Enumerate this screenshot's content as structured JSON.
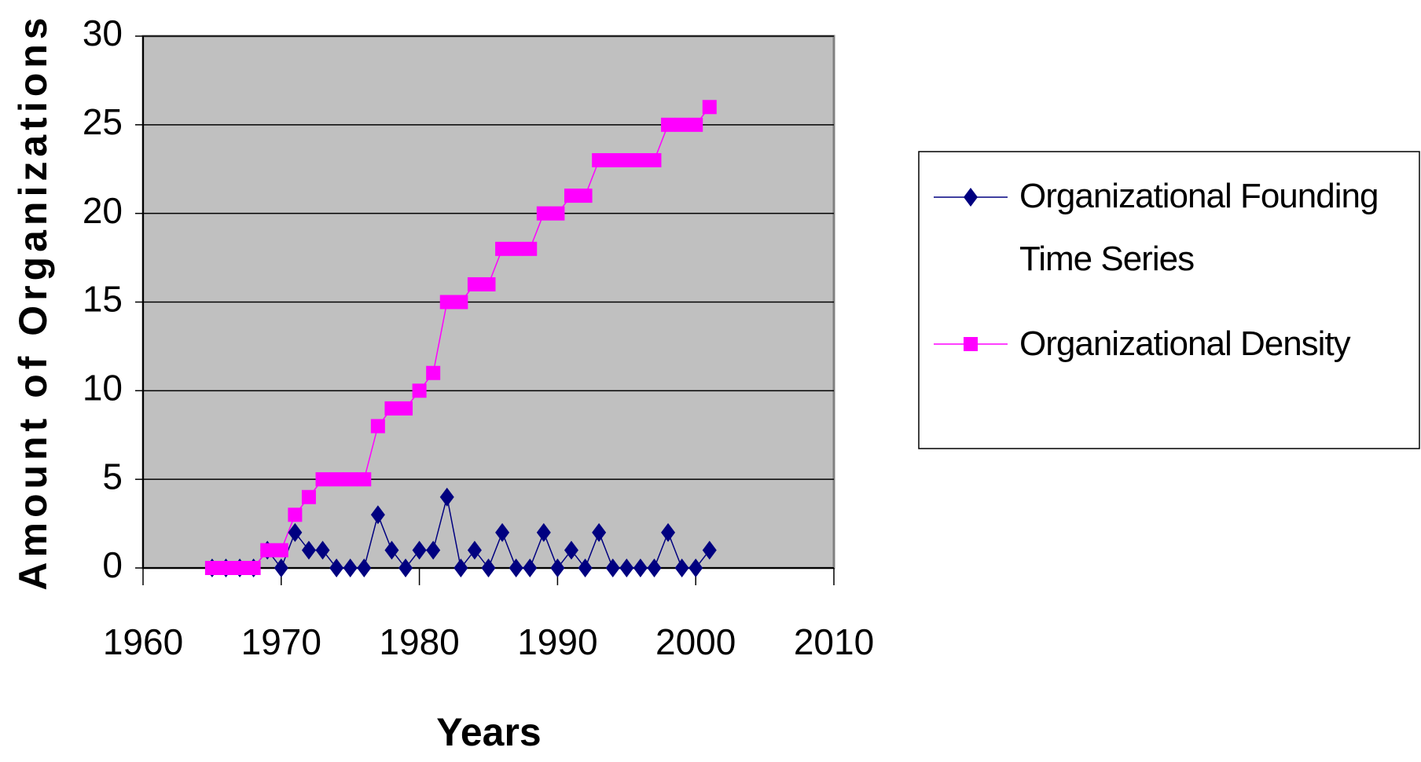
{
  "chart_data": {
    "type": "line",
    "x_label": "Years",
    "y_label": "Amount of Organizations",
    "x": [
      1965,
      1966,
      1967,
      1968,
      1969,
      1970,
      1971,
      1972,
      1973,
      1974,
      1975,
      1976,
      1977,
      1978,
      1979,
      1980,
      1981,
      1982,
      1983,
      1984,
      1985,
      1986,
      1987,
      1988,
      1989,
      1990,
      1991,
      1992,
      1993,
      1994,
      1995,
      1996,
      1997,
      1998,
      1999,
      2000,
      2001
    ],
    "series": [
      {
        "name": "Organizational Founding Time Series",
        "color": "#000080",
        "marker": "diamond",
        "values": [
          0,
          0,
          0,
          0,
          1,
          0,
          2,
          1,
          1,
          0,
          0,
          0,
          3,
          1,
          0,
          1,
          1,
          4,
          0,
          1,
          0,
          2,
          0,
          0,
          2,
          0,
          1,
          0,
          2,
          0,
          0,
          0,
          0,
          2,
          0,
          0,
          1
        ]
      },
      {
        "name": "Organizational Density",
        "color": "#ff00ff",
        "marker": "square",
        "values": [
          0,
          0,
          0,
          0,
          1,
          1,
          3,
          4,
          5,
          5,
          5,
          5,
          8,
          9,
          9,
          10,
          11,
          15,
          15,
          16,
          16,
          18,
          18,
          18,
          20,
          20,
          21,
          21,
          23,
          23,
          23,
          23,
          23,
          25,
          25,
          25,
          26
        ]
      }
    ],
    "xlim": [
      1960,
      2010
    ],
    "xticks": [
      1960,
      1970,
      1980,
      1990,
      2000,
      2010
    ],
    "ylim": [
      0,
      30
    ],
    "yticks": [
      0,
      5,
      10,
      15,
      20,
      25,
      30
    ],
    "grid": true,
    "legend": "right"
  }
}
